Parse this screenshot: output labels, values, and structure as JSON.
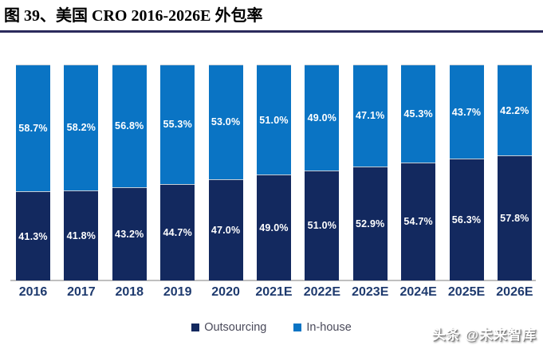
{
  "title": {
    "figure_label": "图 39、美国 CRO 2016-2026E 外包率"
  },
  "chart_data": {
    "type": "bar",
    "subtype": "stacked-100-percent",
    "title": "美国 CRO 2016-2026E 外包率",
    "categories": [
      "2016",
      "2017",
      "2018",
      "2019",
      "2020",
      "2021E",
      "2022E",
      "2023E",
      "2024E",
      "2025E",
      "2026E"
    ],
    "series": [
      {
        "name": "Outsourcing",
        "color": "#13295f",
        "values": [
          41.3,
          41.8,
          43.2,
          44.7,
          47.0,
          49.0,
          51.0,
          52.9,
          54.7,
          56.3,
          57.8
        ]
      },
      {
        "name": "In-house",
        "color": "#0a74c4",
        "values": [
          58.7,
          58.2,
          56.8,
          55.3,
          53.0,
          51.0,
          49.0,
          47.1,
          45.3,
          43.7,
          42.2
        ]
      }
    ],
    "ylim": [
      0,
      100
    ],
    "grid": false,
    "legend_position": "bottom",
    "value_label_format": "one-decimal-percent"
  },
  "watermark": {
    "text": "头条 @未来智库"
  },
  "colors": {
    "title_rule": "#2b2a5c",
    "axis_line": "#bfbfbf",
    "year_label": "#1e3a6e",
    "legend_text": "#4a4a5a"
  }
}
